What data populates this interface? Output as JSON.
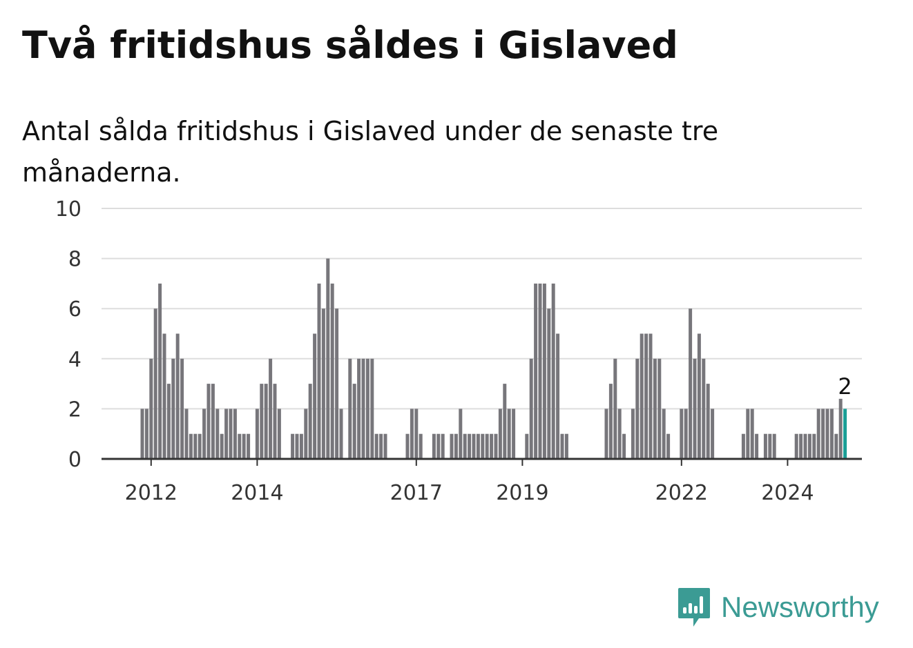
{
  "title": "Två fritidshus såldes i Gislaved",
  "subtitle": "Antal sålda fritidshus i Gislaved under de senaste tre månaderna.",
  "brand": {
    "name": "Newsworthy",
    "icon": "bar-chart-speech-bubble-icon",
    "color": "#3b9b94"
  },
  "colors": {
    "bar": "#77767b",
    "highlight": "#1a9e96",
    "grid": "#dddddd",
    "axis": "#333333"
  },
  "chart_data": {
    "type": "bar",
    "title": "Två fritidshus såldes i Gislaved",
    "subtitle": "Antal sålda fritidshus i Gislaved under de senaste tre månaderna.",
    "xlabel": "",
    "ylabel": "",
    "ylim": [
      0,
      10
    ],
    "y_ticks": [
      "0",
      "2",
      "4",
      "6",
      "8",
      "10"
    ],
    "x_ticks": [
      "2012",
      "2014",
      "2017",
      "2019",
      "2022",
      "2024"
    ],
    "x_start": "2011-11",
    "grid": true,
    "legend": "none",
    "highlight_label": "2",
    "values": [
      2,
      2,
      4,
      6,
      7,
      5,
      3,
      4,
      5,
      4,
      2,
      1,
      1,
      1,
      2,
      3,
      3,
      2,
      1,
      2,
      2,
      2,
      1,
      1,
      1,
      0,
      2,
      3,
      3,
      4,
      3,
      2,
      0,
      0,
      1,
      1,
      1,
      2,
      3,
      5,
      7,
      6,
      8,
      7,
      6,
      2,
      0,
      4,
      3,
      4,
      4,
      4,
      4,
      1,
      1,
      1,
      0,
      0,
      0,
      0,
      1,
      2,
      2,
      1,
      0,
      0,
      1,
      1,
      1,
      0,
      1,
      1,
      2,
      1,
      1,
      1,
      1,
      1,
      1,
      1,
      1,
      2,
      3,
      2,
      2,
      0,
      0,
      1,
      4,
      7,
      7,
      7,
      6,
      7,
      5,
      1,
      1,
      0,
      0,
      0,
      0,
      0,
      0,
      0,
      0,
      2,
      3,
      4,
      2,
      1,
      0,
      2,
      4,
      5,
      5,
      5,
      4,
      4,
      2,
      1,
      0,
      0,
      2,
      2,
      6,
      4,
      5,
      4,
      3,
      2,
      0,
      0,
      0,
      0,
      0,
      0,
      1,
      2,
      2,
      1,
      0,
      1,
      1,
      1,
      0,
      0,
      0,
      0,
      1,
      1,
      1,
      1,
      1,
      2,
      2,
      2,
      2,
      1,
      2.4,
      2
    ]
  }
}
